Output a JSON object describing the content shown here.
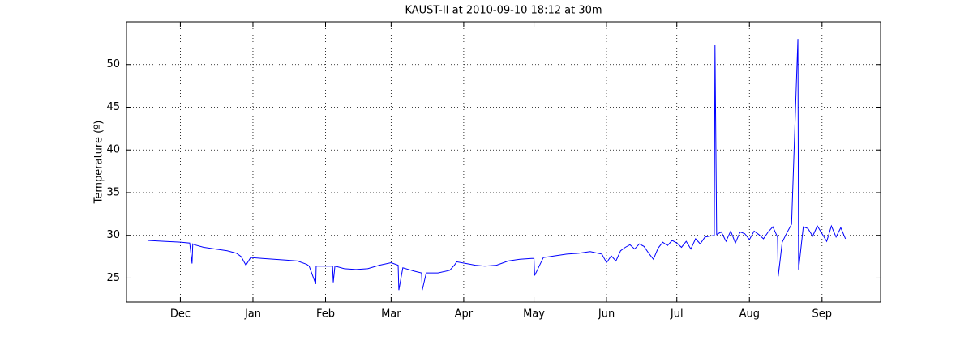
{
  "chart_data": {
    "type": "line",
    "title": "KAUST-II at 2010-09-10 18:12 at 30m",
    "y_label": "Temperature (º)",
    "x": [
      -14,
      -7,
      0,
      4,
      5,
      5.3,
      6,
      10,
      15,
      20,
      24,
      26,
      28,
      30,
      35,
      40,
      45,
      50,
      54,
      55,
      57.8,
      58,
      60,
      65,
      65.3,
      66,
      70,
      75,
      80,
      85,
      90,
      93,
      93.3,
      95,
      100,
      103,
      103.3,
      105,
      110,
      115,
      117,
      118,
      122,
      126,
      130,
      135,
      140,
      145,
      150,
      151,
      151.3,
      155,
      160,
      165,
      170,
      175,
      180,
      182,
      184,
      186,
      188,
      190,
      192,
      194,
      196,
      198,
      200,
      202,
      204,
      206,
      208,
      210,
      212,
      214,
      216,
      218,
      220,
      222,
      224,
      226,
      228,
      228.3,
      229,
      231,
      233,
      235,
      237,
      239,
      241,
      243,
      245,
      247,
      249,
      251,
      253,
      255,
      255.3,
      257,
      259,
      261,
      263.7,
      264,
      266,
      268,
      270,
      272,
      274,
      276,
      278,
      280,
      282,
      284
    ],
    "series": [
      {
        "color": "#0000ff",
        "values": [
          29.4,
          29.3,
          29.2,
          29.1,
          26.7,
          29.0,
          28.9,
          28.6,
          28.4,
          28.2,
          27.9,
          27.5,
          26.5,
          27.4,
          27.3,
          27.2,
          27.1,
          27.0,
          26.6,
          26.4,
          24.3,
          26.4,
          26.4,
          26.4,
          24.5,
          26.4,
          26.1,
          26.0,
          26.1,
          26.5,
          26.8,
          26.5,
          23.6,
          26.2,
          25.8,
          25.6,
          23.6,
          25.6,
          25.6,
          25.9,
          26.5,
          26.9,
          26.7,
          26.5,
          26.4,
          26.5,
          27.0,
          27.2,
          27.3,
          27.3,
          25.3,
          27.4,
          27.6,
          27.8,
          27.9,
          28.1,
          27.8,
          26.8,
          27.6,
          27.0,
          28.2,
          28.6,
          28.9,
          28.4,
          29.0,
          28.7,
          27.9,
          27.2,
          28.5,
          29.2,
          28.8,
          29.4,
          29.1,
          28.6,
          29.3,
          28.4,
          29.6,
          29.0,
          29.8,
          29.9,
          30.0,
          52.3,
          30.1,
          30.4,
          29.3,
          30.5,
          29.1,
          30.4,
          30.2,
          29.5,
          30.5,
          30.1,
          29.6,
          30.4,
          31.0,
          29.8,
          25.2,
          29.2,
          30.3,
          31.3,
          53.0,
          26.0,
          31.0,
          30.8,
          29.9,
          31.1,
          30.2,
          29.3,
          31.1,
          29.8,
          30.9,
          29.6
        ]
      }
    ],
    "xlim": [
      -23,
      299
    ],
    "xticks": [
      {
        "value": 0,
        "label": "Dec"
      },
      {
        "value": 31,
        "label": "Jan"
      },
      {
        "value": 62,
        "label": "Feb"
      },
      {
        "value": 90,
        "label": "Mar"
      },
      {
        "value": 121,
        "label": "Apr"
      },
      {
        "value": 151,
        "label": "May"
      },
      {
        "value": 182,
        "label": "Jun"
      },
      {
        "value": 212,
        "label": "Jul"
      },
      {
        "value": 243,
        "label": "Aug"
      },
      {
        "value": 274,
        "label": "Sep"
      }
    ],
    "ylim": [
      22.2,
      55
    ],
    "yticks": [
      25,
      30,
      35,
      40,
      45,
      50
    ],
    "grid": true
  }
}
